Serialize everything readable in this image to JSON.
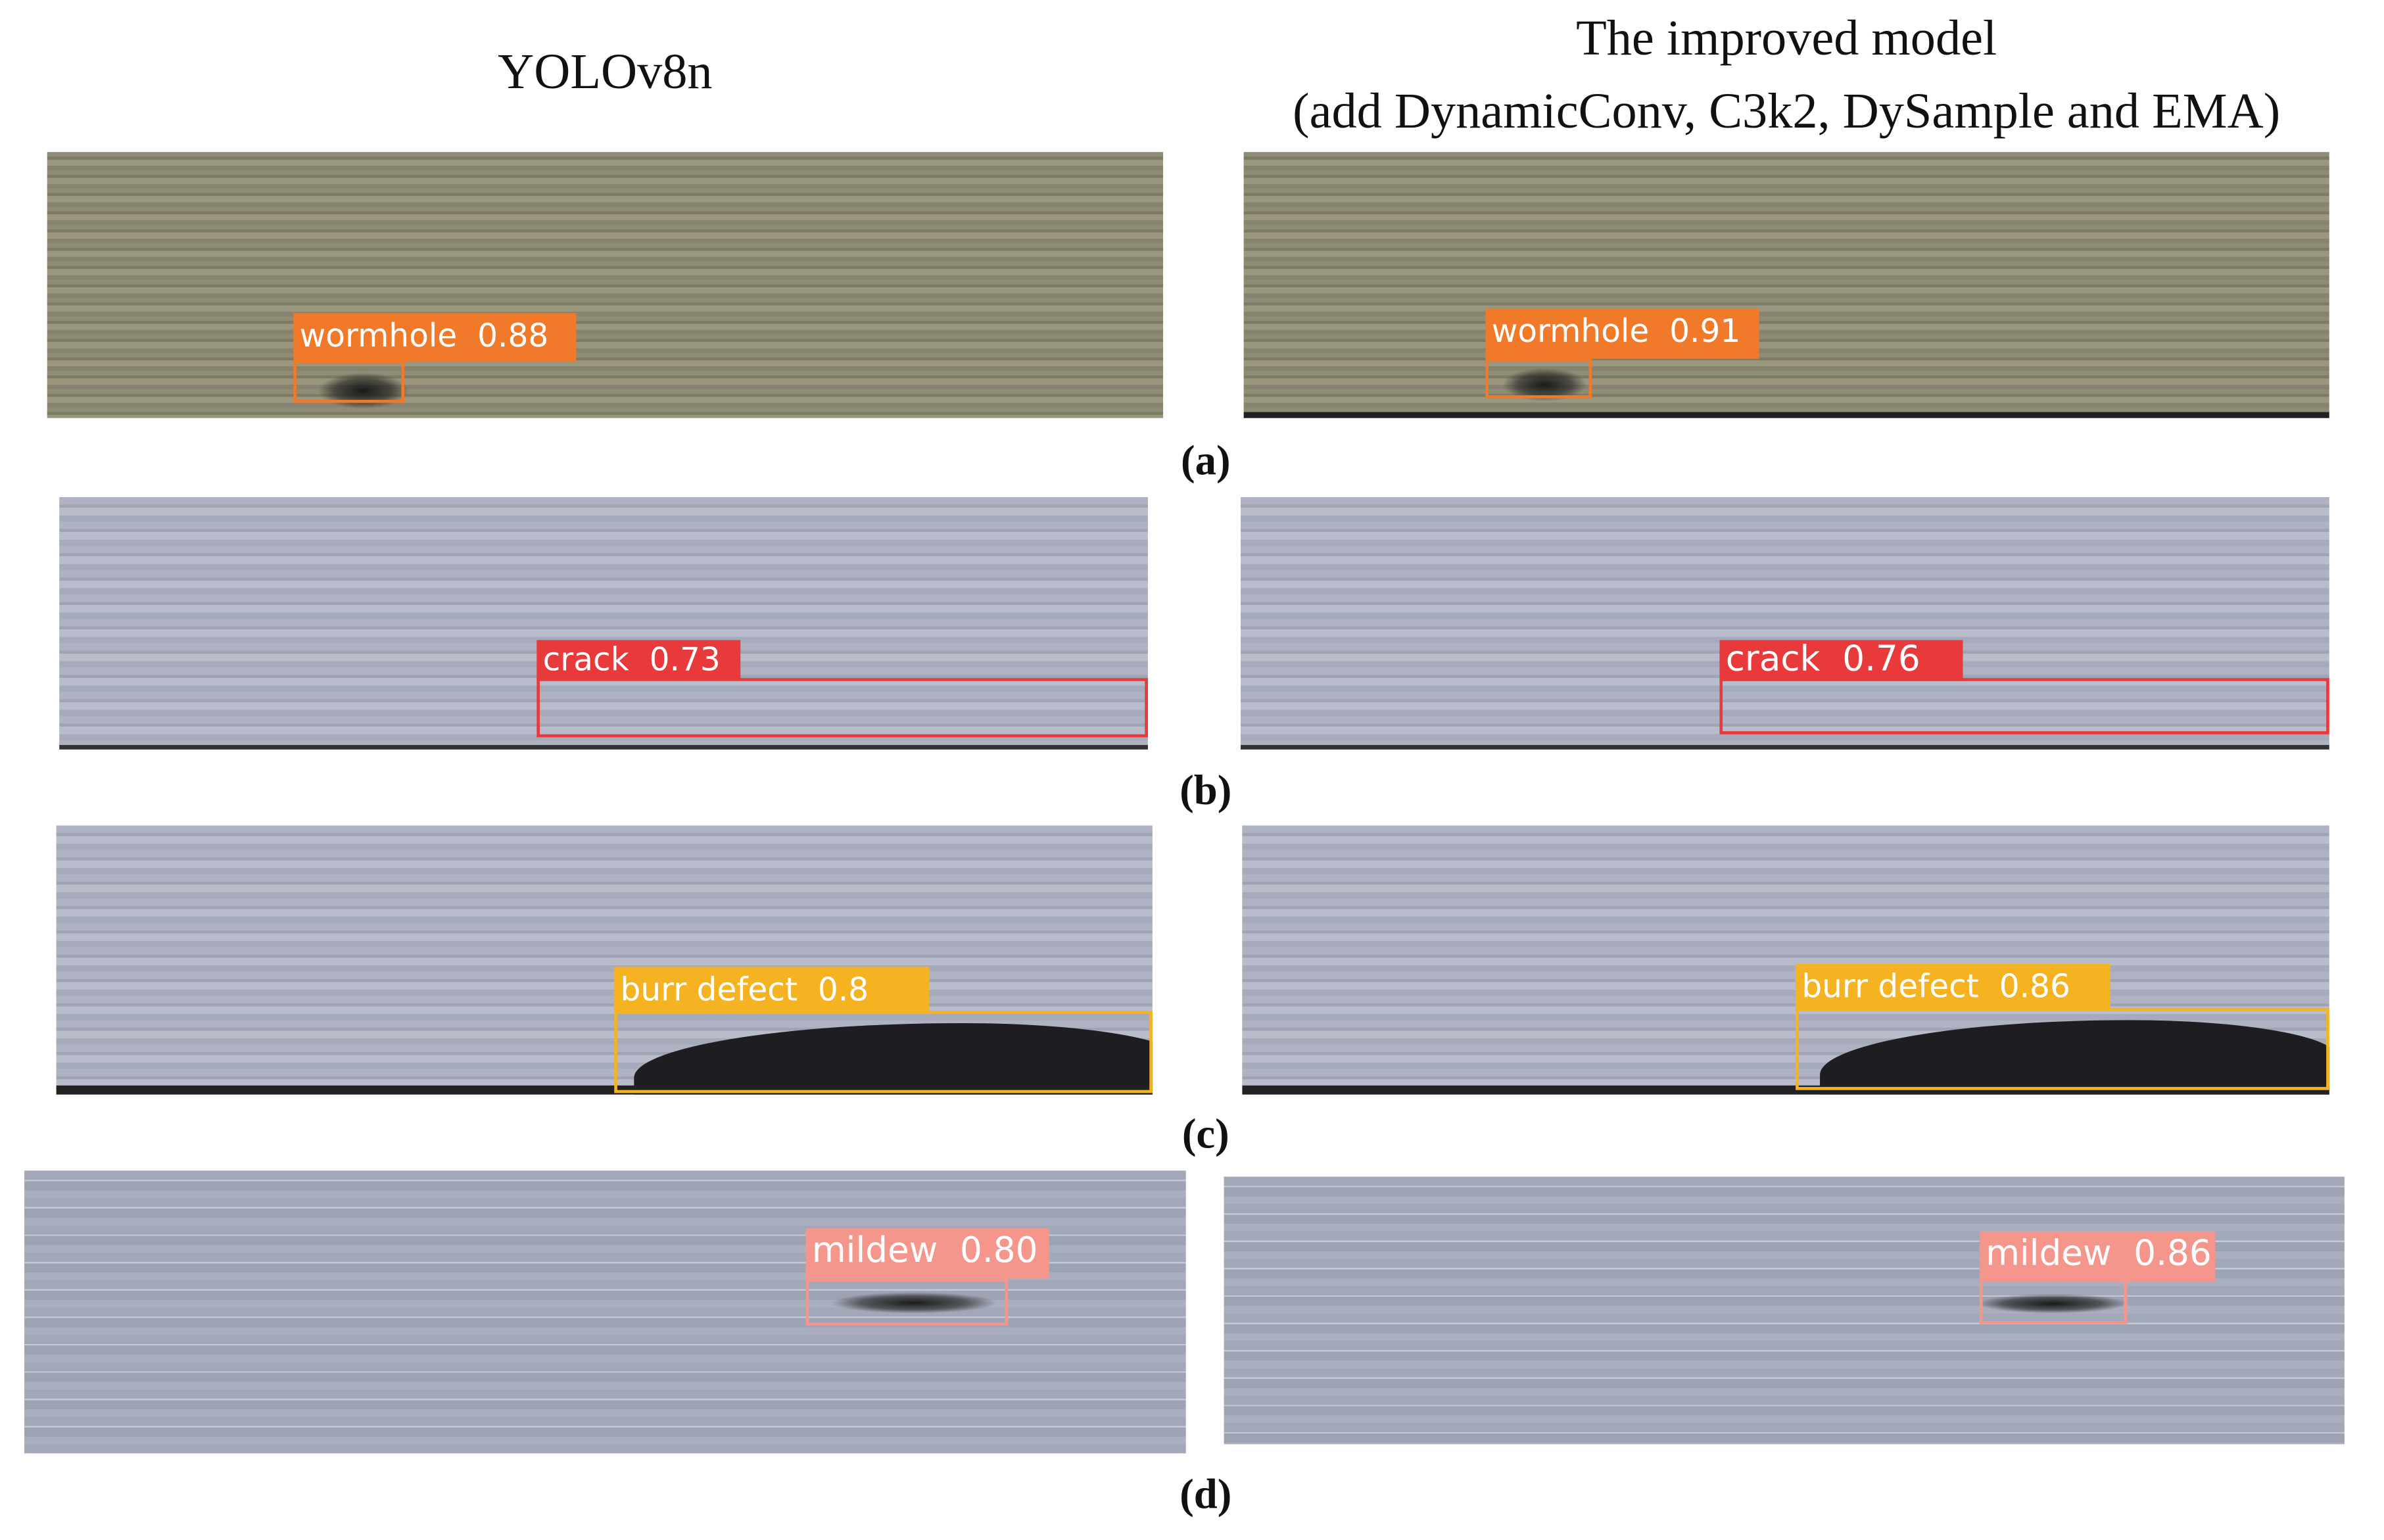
{
  "header": {
    "left": "YOLOv8n",
    "right_line1": "The improved model",
    "right_line2": "(add DynamicConv, C3k2, DySample and EMA)"
  },
  "rows": [
    {
      "caption": "(a)",
      "left_label": "wormhole  0.88",
      "right_label": "wormhole  0.91"
    },
    {
      "caption": "(b)",
      "left_label": "crack  0.73",
      "right_label": "crack  0.76"
    },
    {
      "caption": "(c)",
      "left_label": "burr defect  0.8",
      "right_label": "burr defect  0.86"
    },
    {
      "caption": "(d)",
      "left_label": "mildew  0.80",
      "right_label": "mildew  0.86"
    }
  ]
}
